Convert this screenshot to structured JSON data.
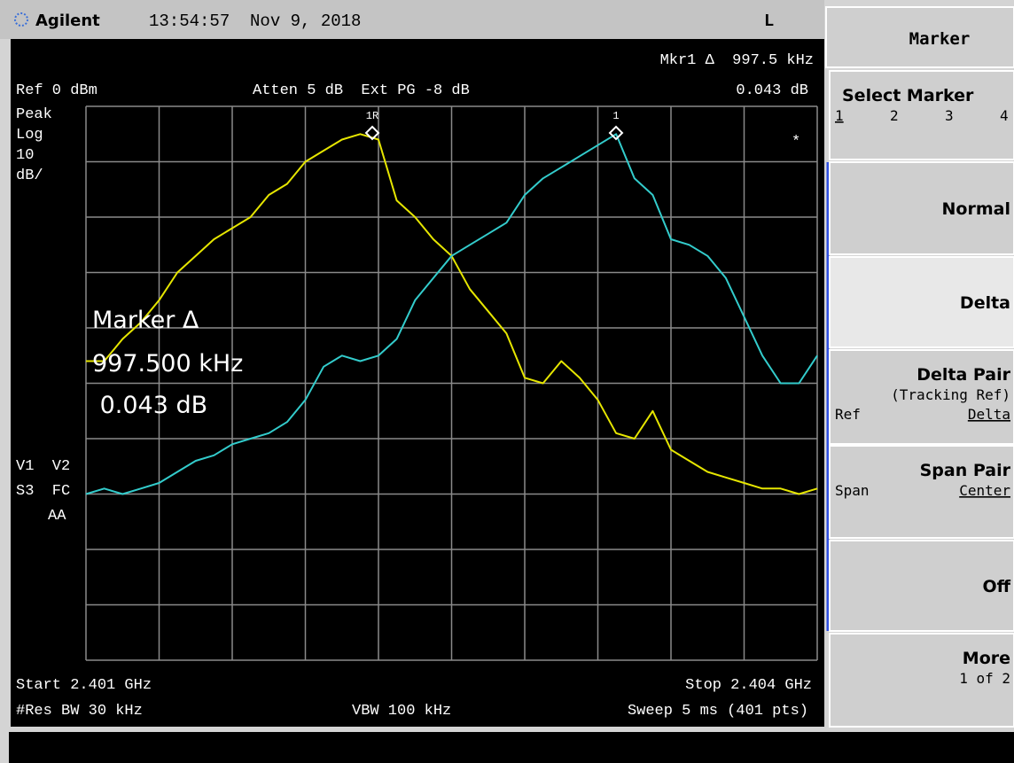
{
  "header": {
    "brand": "Agilent",
    "datetime": "13:54:57  Nov 9, 2018",
    "mode": "L"
  },
  "display": {
    "marker_readout": "Mkr1 Δ  997.5 kHz",
    "ref_level": "Ref 0 dBm",
    "attenuation": "Atten 5 dB  Ext PG -8 dB",
    "marker_amplitude": "0.043 dB",
    "detector": [
      "Peak",
      "Log",
      "10",
      "dB/"
    ],
    "status": [
      "V1  V2",
      "S3  FC",
      "AA"
    ],
    "star": "*",
    "marker_labels": [
      "1R",
      "1"
    ],
    "annotation": [
      "Marker Δ",
      "997.500 kHz",
      " 0.043 dB"
    ],
    "start": "Start 2.401 GHz",
    "stop": "Stop 2.404 GHz",
    "res_bw": "#Res BW 30 kHz",
    "vbw": "VBW 100 kHz",
    "sweep": "Sweep 5 ms (401 pts)"
  },
  "chart_data": {
    "type": "line",
    "x": [
      2.401,
      2.401075,
      2.40115,
      2.401225,
      2.4013,
      2.401375,
      2.40145,
      2.401525,
      2.4016,
      2.401675,
      2.40175,
      2.401825,
      2.4019,
      2.401975,
      2.40205,
      2.402125,
      2.4022,
      2.402275,
      2.40235,
      2.402425,
      2.4025,
      2.402575,
      2.40265,
      2.402725,
      2.4028,
      2.402875,
      2.40295,
      2.403025,
      2.4031,
      2.403175,
      2.40325,
      2.403325,
      2.4034,
      2.403475,
      2.40355,
      2.403625,
      2.4037,
      2.403775,
      2.40385,
      2.403925,
      2.404
    ],
    "xlim": [
      2.401,
      2.404
    ],
    "ylim": [
      -100,
      0
    ],
    "series": [
      {
        "color": "#e6e600",
        "values": [
          -46,
          -46,
          -42,
          -39,
          -35,
          -30,
          -27,
          -24,
          -22,
          -20,
          -16,
          -14,
          -10,
          -8,
          -6,
          -5,
          -6,
          -17,
          -20,
          -24,
          -27,
          -33,
          -37,
          -41,
          -49,
          -50,
          -46,
          -49,
          -53,
          -59,
          -60,
          -55,
          -62,
          -64,
          -66,
          -67,
          -68,
          -69,
          -69,
          -70,
          -69
        ]
      },
      {
        "color": "#33cccc",
        "values": [
          -70,
          -69,
          -70,
          -69,
          -68,
          -66,
          -64,
          -63,
          -61,
          -60,
          -59,
          -57,
          -53,
          -47,
          -45,
          -46,
          -45,
          -42,
          -35,
          -31,
          -27,
          -25,
          -23,
          -21,
          -16,
          -13,
          -11,
          -9,
          -7,
          -5,
          -13,
          -16,
          -24,
          -25,
          -27,
          -31,
          -38,
          -45,
          -50,
          -50,
          -45
        ]
      }
    ]
  },
  "softkeys": {
    "title": "Marker",
    "items": [
      {
        "label": "Select Marker",
        "options": [
          "1",
          "2",
          "3",
          "4"
        ]
      },
      {
        "label": "Normal"
      },
      {
        "label": "Delta"
      },
      {
        "label": "Delta Pair",
        "sublabel": "(Tracking Ref)",
        "left": "Ref",
        "right": "Delta"
      },
      {
        "label": "Span Pair",
        "left": "Span",
        "right": "Center"
      },
      {
        "label": "Off"
      },
      {
        "label": "More",
        "sublabel": "1 of 2"
      }
    ]
  }
}
